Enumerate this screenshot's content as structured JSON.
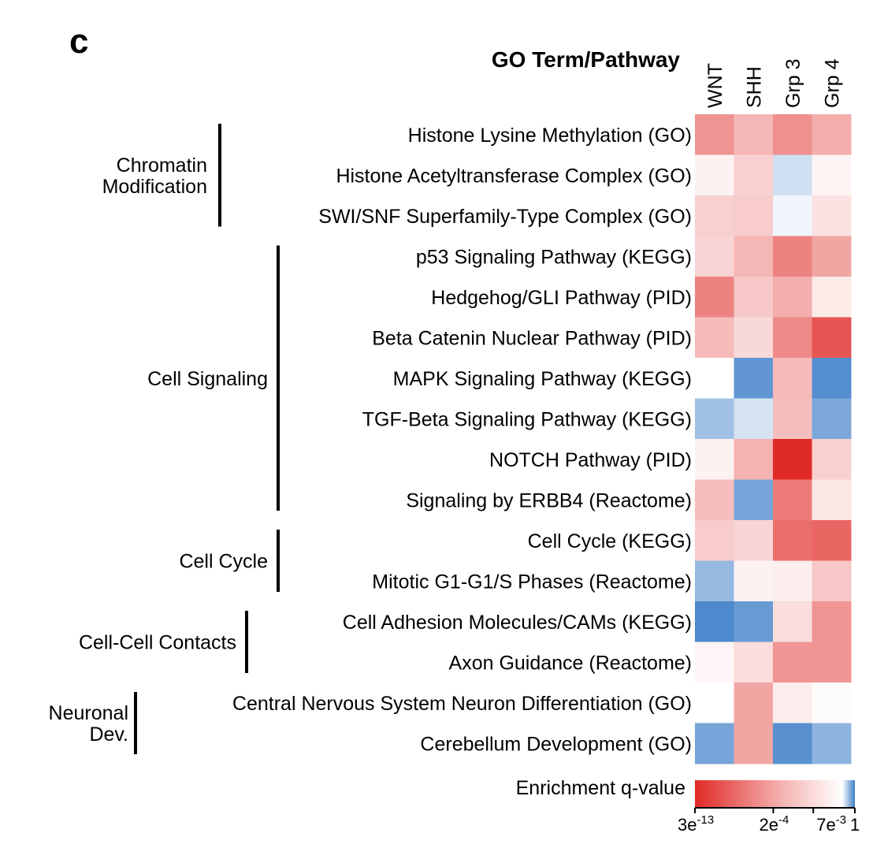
{
  "panel_letter": "c",
  "header": "GO Term/Pathway",
  "legend_title": "Enrichment q-value",
  "legend_ticks": [
    {
      "base": "3e",
      "exp": "-13",
      "pos": 0.0
    },
    {
      "base": "2e",
      "exp": "-4",
      "pos": 0.49
    },
    {
      "base": "7e",
      "exp": "-3",
      "pos": 0.74
    },
    {
      "base": "1",
      "exp": "",
      "pos": 1.0
    }
  ],
  "colors": {
    "strong_red": "#e02a26",
    "white": "#ffffff",
    "strong_blue": "#3e7fc8"
  },
  "chart_data": {
    "type": "heatmap",
    "columns": [
      "WNT",
      "SHH",
      "Grp 3",
      "Grp 4"
    ],
    "rows": [
      "Histone Lysine Methylation (GO)",
      "Histone Acetyltransferase Complex (GO)",
      "SWI/SNF Superfamily-Type Complex (GO)",
      "p53 Signaling Pathway (KEGG)",
      "Hedgehog/GLI Pathway (PID)",
      "Beta Catenin Nuclear Pathway (PID)",
      "MAPK Signaling Pathway (KEGG)",
      "TGF-Beta Signaling Pathway (KEGG)",
      "NOTCH Pathway (PID)",
      "Signaling by ERBB4 (Reactome)",
      "Cell Cycle (KEGG)",
      "Mitotic G1-G1/S Phases (Reactome)",
      "Cell Adhesion Molecules/CAMs (KEGG)",
      "Axon Guidance (Reactome)",
      "Central Nervous System Neuron Differentiation (GO)",
      "Cerebellum Development (GO)"
    ],
    "groups": [
      {
        "label": [
          "Chromatin",
          "Modification"
        ],
        "start": 0,
        "end": 2
      },
      {
        "label": [
          "Cell Signaling"
        ],
        "start": 3,
        "end": 9
      },
      {
        "label": [
          "Cell Cycle"
        ],
        "start": 10,
        "end": 11
      },
      {
        "label": [
          "Cell-Cell Contacts"
        ],
        "start": 12,
        "end": 13
      },
      {
        "label": [
          "Neuronal",
          "Dev."
        ],
        "start": 14,
        "end": 15
      }
    ],
    "values": [
      [
        0.5,
        0.34,
        0.52,
        0.38
      ],
      [
        0.06,
        0.22,
        -0.25,
        0.05
      ],
      [
        0.22,
        0.24,
        -0.08,
        0.14
      ],
      [
        0.2,
        0.34,
        0.58,
        0.42
      ],
      [
        0.58,
        0.26,
        0.38,
        0.1
      ],
      [
        0.32,
        0.18,
        0.55,
        0.8
      ],
      [
        0.0,
        -0.82,
        0.32,
        -0.88
      ],
      [
        -0.48,
        -0.22,
        0.3,
        -0.68
      ],
      [
        0.06,
        0.36,
        1.0,
        0.22
      ],
      [
        0.3,
        -0.7,
        0.62,
        0.12
      ],
      [
        0.24,
        0.2,
        0.68,
        0.72
      ],
      [
        -0.55,
        0.06,
        0.08,
        0.26
      ],
      [
        -0.92,
        -0.78,
        0.16,
        0.5
      ],
      [
        0.04,
        0.16,
        0.5,
        0.5
      ],
      [
        0.0,
        0.42,
        0.08,
        0.02
      ],
      [
        -0.7,
        0.42,
        -0.86,
        -0.58
      ]
    ],
    "value_scale": "signed enrichment: positive = red (smaller q-value), negative = blue"
  }
}
